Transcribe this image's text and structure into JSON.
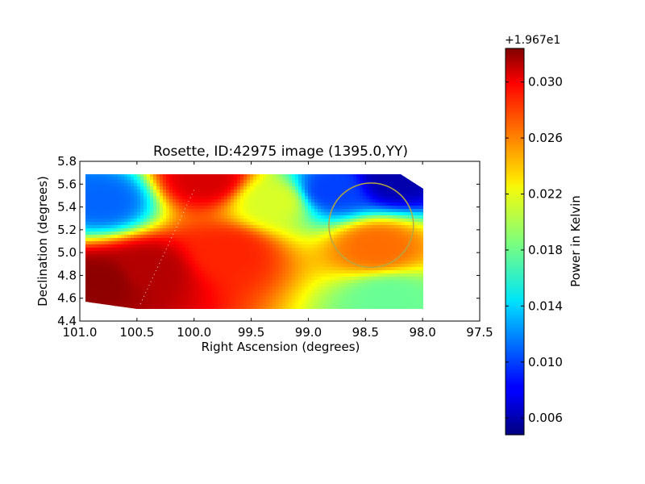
{
  "chart_data": {
    "type": "heatmap",
    "title": "Rosette, ID:42975 image (1395.0,YY)",
    "xlabel": "Right Ascension (degrees)",
    "ylabel": "Declination (degrees)",
    "xlim": [
      101.0,
      97.5
    ],
    "ylim": [
      4.4,
      5.8
    ],
    "x_ticks": [
      "101.0",
      "100.5",
      "100.0",
      "99.5",
      "99.0",
      "98.5",
      "98.0",
      "97.5"
    ],
    "y_ticks": [
      "4.4",
      "4.6",
      "4.8",
      "5.0",
      "5.2",
      "5.4",
      "5.6",
      "5.8"
    ],
    "colorbar": {
      "label": "Power in Kelvin",
      "offset_text": "+1.967e1",
      "colormap": "jet",
      "vmin": 0.0048,
      "vmax": 0.0324,
      "ticks": [
        "0.006",
        "0.010",
        "0.014",
        "0.018",
        "0.022",
        "0.026",
        "0.030"
      ]
    },
    "map_extent": {
      "ra": [
        100.95,
        98.0
      ],
      "dec": [
        4.52,
        5.69
      ]
    },
    "sample_values": [
      {
        "ra": 100.8,
        "dec": 5.45,
        "value": 0.011
      },
      {
        "ra": 100.8,
        "dec": 4.75,
        "value": 0.032
      },
      {
        "ra": 100.4,
        "dec": 4.85,
        "value": 0.031
      },
      {
        "ra": 99.9,
        "dec": 5.65,
        "value": 0.03
      },
      {
        "ra": 99.7,
        "dec": 5.0,
        "value": 0.028
      },
      {
        "ra": 99.3,
        "dec": 5.45,
        "value": 0.021
      },
      {
        "ra": 98.8,
        "dec": 5.55,
        "value": 0.01
      },
      {
        "ra": 98.25,
        "dec": 5.65,
        "value": 0.006
      },
      {
        "ra": 98.4,
        "dec": 5.05,
        "value": 0.026
      },
      {
        "ra": 98.3,
        "dec": 4.6,
        "value": 0.018
      }
    ],
    "circle": {
      "ra": 98.45,
      "dec": 5.24,
      "radius_deg": 0.37,
      "color": "#b5a742"
    },
    "dotted_line": {
      "from": {
        "ra": 100.47,
        "dec": 4.55
      },
      "to": {
        "ra": 100.0,
        "dec": 5.55
      }
    },
    "grid": false
  }
}
